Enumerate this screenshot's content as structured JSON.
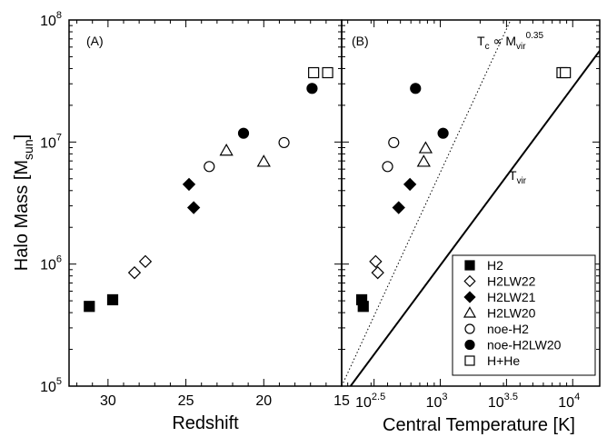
{
  "chart_data": [
    {
      "panel_label": "(A)",
      "type": "scatter",
      "xlabel": "Redshift",
      "ylabel": "Halo Mass [M",
      "ylabel_sub": "sun",
      "ylabel_end": "]",
      "xlim": [
        32.5,
        15
      ],
      "x_reversed": true,
      "ylim": [
        100000,
        100000000
      ],
      "yscale": "log",
      "x_ticks": [
        {
          "v": 30,
          "label": "30"
        },
        {
          "v": 25,
          "label": "25"
        },
        {
          "v": 20,
          "label": "20"
        },
        {
          "v": 15,
          "label": "15"
        }
      ],
      "y_ticks": [
        {
          "v": 100000,
          "base": "10",
          "exp": "5"
        },
        {
          "v": 1000000,
          "base": "10",
          "exp": "6"
        },
        {
          "v": 10000000,
          "base": "10",
          "exp": "7"
        },
        {
          "v": 100000000,
          "base": "10",
          "exp": "8"
        }
      ],
      "series": [
        {
          "name": "H2",
          "marker": "square",
          "filled": true,
          "points": [
            [
              31.2,
              450000
            ],
            [
              29.7,
              510000
            ]
          ]
        },
        {
          "name": "H2LW22",
          "marker": "diamond",
          "filled": false,
          "points": [
            [
              28.3,
              850000
            ],
            [
              27.6,
              1050000
            ]
          ]
        },
        {
          "name": "H2LW21",
          "marker": "diamond",
          "filled": true,
          "points": [
            [
              24.8,
              4500000
            ],
            [
              24.5,
              2900000
            ]
          ]
        },
        {
          "name": "H2LW20",
          "marker": "triangle",
          "filled": false,
          "points": [
            [
              22.4,
              8500000
            ],
            [
              20.0,
              6900000
            ]
          ]
        },
        {
          "name": "noe-H2",
          "marker": "circle",
          "filled": false,
          "points": [
            [
              23.5,
              6300000
            ],
            [
              18.7,
              9900000
            ]
          ]
        },
        {
          "name": "noe-H2LW20",
          "marker": "circle",
          "filled": true,
          "points": [
            [
              21.3,
              11800000
            ],
            [
              16.9,
              27500000
            ]
          ]
        },
        {
          "name": "H+He",
          "marker": "square",
          "filled": false,
          "points": [
            [
              16.8,
              37000000
            ],
            [
              15.9,
              37000000
            ]
          ]
        }
      ]
    },
    {
      "panel_label": "(B)",
      "type": "scatter",
      "xlabel": "Central Temperature [K]",
      "xlim": [
        180,
        16000
      ],
      "xscale": "log",
      "ylim": [
        100000,
        100000000
      ],
      "yscale": "log",
      "x_ticks": [
        {
          "v": 316.2278,
          "base": "10",
          "exp": "2.5"
        },
        {
          "v": 1000,
          "base": "10",
          "exp": "3"
        },
        {
          "v": 3162.278,
          "base": "10",
          "exp": "3.5"
        },
        {
          "v": 10000,
          "base": "10",
          "exp": "4"
        }
      ],
      "series": [
        {
          "name": "H2",
          "marker": "square",
          "filled": true,
          "points": [
            [
              255,
              510000
            ],
            [
              262,
              450000
            ]
          ]
        },
        {
          "name": "H2LW22",
          "marker": "diamond",
          "filled": false,
          "points": [
            [
              325,
              1050000
            ],
            [
              337,
              850000
            ]
          ]
        },
        {
          "name": "H2LW21",
          "marker": "diamond",
          "filled": true,
          "points": [
            [
              485,
              2900000
            ],
            [
              590,
              4500000
            ]
          ]
        },
        {
          "name": "H2LW20",
          "marker": "triangle",
          "filled": false,
          "points": [
            [
              775,
              8900000
            ],
            [
              750,
              6900000
            ]
          ]
        },
        {
          "name": "noe-H2",
          "marker": "circle",
          "filled": false,
          "points": [
            [
              400,
              6300000
            ],
            [
              445,
              9900000
            ]
          ]
        },
        {
          "name": "noe-H2LW20",
          "marker": "circle",
          "filled": true,
          "points": [
            [
              650,
              27500000
            ],
            [
              1050,
              11800000
            ]
          ]
        },
        {
          "name": "H+He",
          "marker": "square",
          "filled": false,
          "points": [
            [
              8300,
              37000000
            ],
            [
              8800,
              37000000
            ]
          ]
        }
      ],
      "reference_lines": [
        {
          "label": "T",
          "label_sub": "vir",
          "style": "solid",
          "points": [
            [
              210,
              100000
            ],
            [
              16000,
              56000000
            ]
          ]
        },
        {
          "label": "T",
          "label_sub": "c",
          "label_rest": " ∝ M",
          "label_sub2": "vir",
          "label_sup": "0.35",
          "style": "dotted",
          "points": [
            [
              180,
              100000
            ],
            [
              3400,
              100000000
            ]
          ]
        }
      ],
      "legend": {
        "placement": "bottom-right",
        "entries": [
          {
            "name": "H2",
            "marker": "square",
            "filled": true
          },
          {
            "name": "H2LW22",
            "marker": "diamond",
            "filled": false
          },
          {
            "name": "H2LW21",
            "marker": "diamond",
            "filled": true
          },
          {
            "name": "H2LW20",
            "marker": "triangle",
            "filled": false
          },
          {
            "name": "noe-H2",
            "marker": "circle",
            "filled": false
          },
          {
            "name": "noe-H2LW20",
            "marker": "circle",
            "filled": true
          },
          {
            "name": "H+He",
            "marker": "square",
            "filled": false
          }
        ]
      }
    }
  ]
}
